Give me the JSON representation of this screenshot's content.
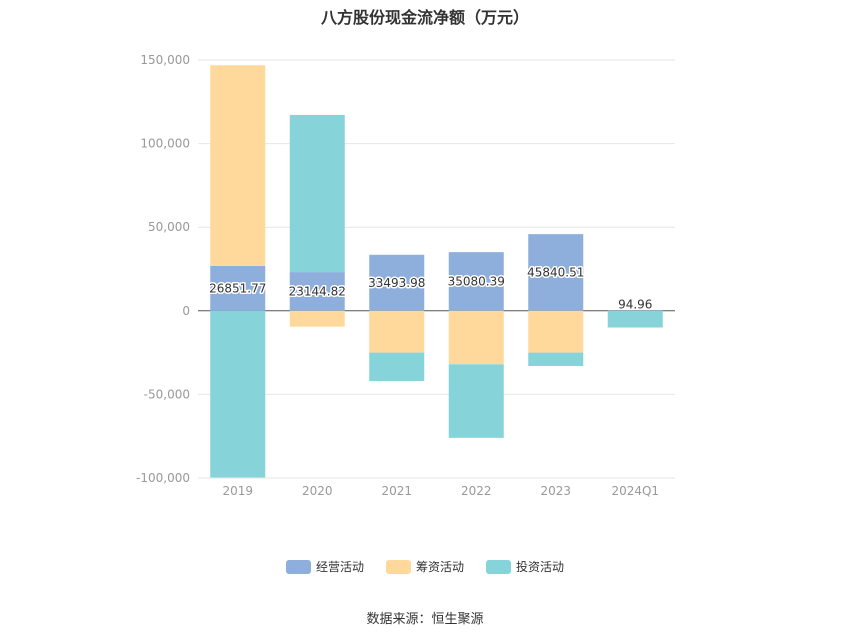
{
  "chart_data": {
    "type": "bar",
    "stacked": true,
    "title": "八方股份现金流净额（万元）",
    "categories": [
      "2019",
      "2020",
      "2021",
      "2022",
      "2023",
      "2024Q1"
    ],
    "series": [
      {
        "name": "经营活动",
        "color": "#8eaedb",
        "values": [
          26851.77,
          23144.82,
          33493.98,
          35080.39,
          45840.51,
          94.96
        ]
      },
      {
        "name": "筹资活动",
        "color": "#ffd99b",
        "values": [
          120000,
          -9500,
          -25000,
          -32000,
          -25000,
          0
        ]
      },
      {
        "name": "投资活动",
        "color": "#86d4d9",
        "values": [
          -100000,
          94000,
          -17000,
          -44000,
          -8000,
          -10000
        ]
      }
    ],
    "data_labels": [
      "26851.77",
      "23144.82",
      "33493.98",
      "35080.39",
      "45840.51",
      "94.96"
    ],
    "ylim": [
      -100000,
      150000
    ],
    "yticks": [
      150000,
      100000,
      50000,
      0,
      -50000,
      -100000
    ],
    "ytick_labels": [
      "150,000",
      "100,000",
      "50,000",
      "0",
      "-50,000",
      "-100,000"
    ],
    "grid": true,
    "legend_position": "bottom",
    "source": "数据来源：恒生聚源"
  }
}
